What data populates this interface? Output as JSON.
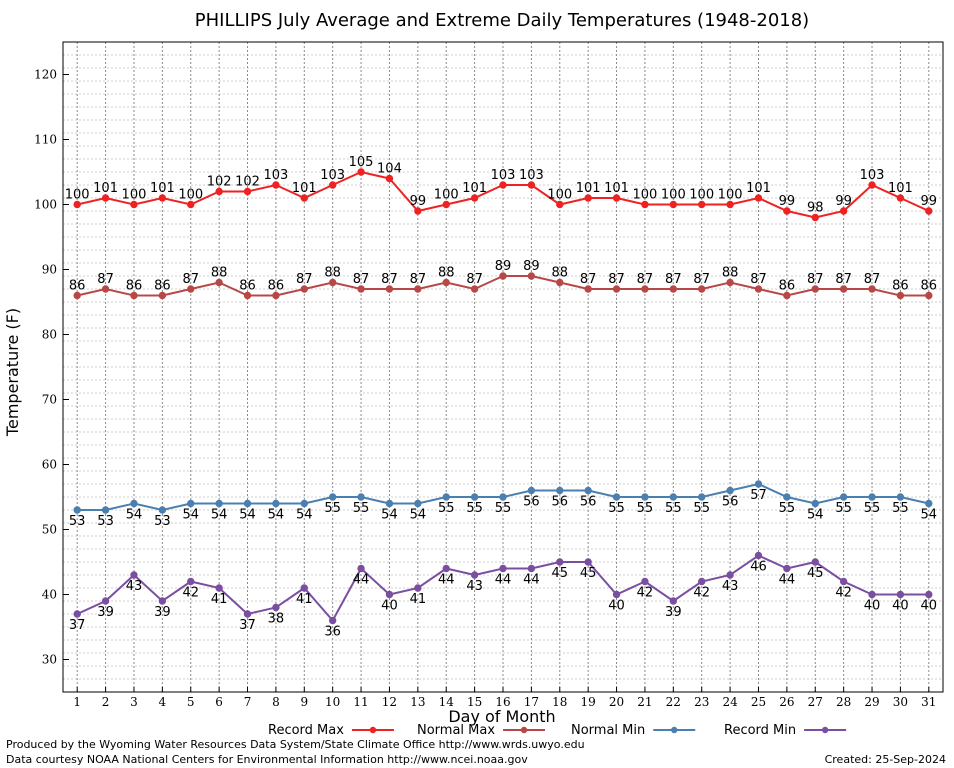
{
  "footer": {
    "produced_by": "Produced by the Wyoming Water Resources Data System/State Climate Office http://www.wrds.uwyo.edu",
    "courtesy": "Data courtesy NOAA National Centers for Environmental Information http://www.ncei.noaa.gov",
    "created": "Created:  25-Sep-2024"
  },
  "chart_data": {
    "type": "line",
    "title": "PHILLIPS July Average and Extreme Daily Temperatures (1948-2018)",
    "xlabel": "Day of Month",
    "ylabel": "Temperature (F)",
    "ylim": [
      25,
      125
    ],
    "xlim": [
      0.5,
      31.5
    ],
    "yticks": [
      30,
      40,
      50,
      60,
      70,
      80,
      90,
      100,
      110,
      120
    ],
    "grid": true,
    "legend_position": "bottom",
    "x": [
      1,
      2,
      3,
      4,
      5,
      6,
      7,
      8,
      9,
      10,
      11,
      12,
      13,
      14,
      15,
      16,
      17,
      18,
      19,
      20,
      21,
      22,
      23,
      24,
      25,
      26,
      27,
      28,
      29,
      30,
      31
    ],
    "series": [
      {
        "name": "Record Max",
        "color": "#ee2222",
        "label_position": "above",
        "values": [
          100,
          101,
          100,
          101,
          100,
          102,
          102,
          103,
          101,
          103,
          105,
          104,
          99,
          100,
          101,
          103,
          103,
          100,
          101,
          101,
          100,
          100,
          100,
          100,
          101,
          99,
          98,
          99,
          103,
          101,
          99
        ]
      },
      {
        "name": "Normal Max",
        "color": "#b84848",
        "label_position": "above",
        "values": [
          86,
          87,
          86,
          86,
          87,
          88,
          86,
          86,
          87,
          88,
          87,
          87,
          87,
          88,
          87,
          89,
          89,
          88,
          87,
          87,
          87,
          87,
          87,
          88,
          87,
          86,
          87,
          87,
          87,
          86,
          86
        ]
      },
      {
        "name": "Normal Min",
        "color": "#4a7fb0",
        "label_position": "below",
        "values": [
          53,
          53,
          54,
          53,
          54,
          54,
          54,
          54,
          54,
          55,
          55,
          54,
          54,
          55,
          55,
          55,
          56,
          56,
          56,
          55,
          55,
          55,
          55,
          56,
          57,
          55,
          54,
          55,
          55,
          55,
          54
        ]
      },
      {
        "name": "Record Min",
        "color": "#7a4fa0",
        "label_position": "below",
        "values": [
          37,
          39,
          43,
          39,
          42,
          41,
          37,
          38,
          41,
          36,
          44,
          40,
          41,
          44,
          43,
          44,
          44,
          45,
          45,
          40,
          42,
          39,
          42,
          43,
          46,
          44,
          45,
          42,
          40,
          40,
          40
        ]
      }
    ]
  }
}
